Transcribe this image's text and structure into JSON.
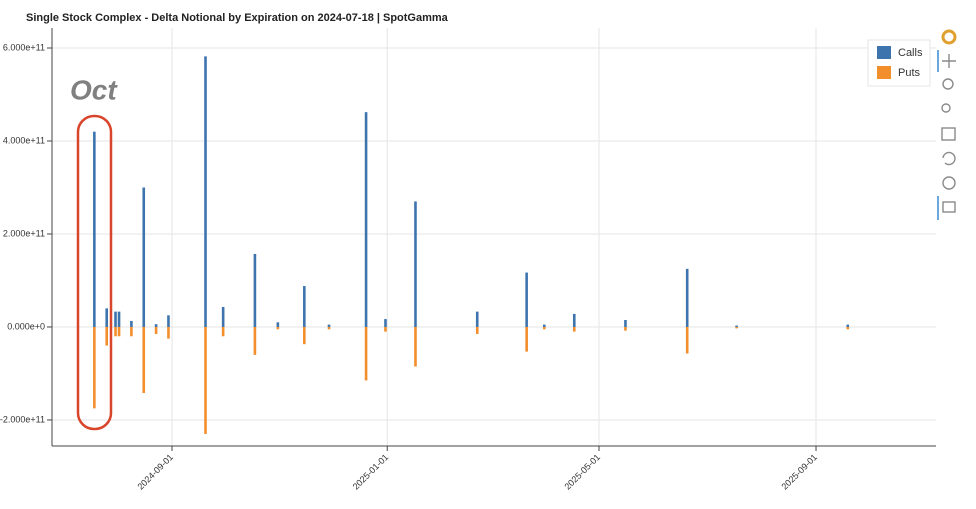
{
  "chart_data": {
    "type": "bar",
    "title": "Single Stock Complex - Delta Notional by Expiration on 2024-07-18 | SpotGamma",
    "annotation": "Oct",
    "x": [
      "2024-07-19",
      "2024-07-26",
      "2024-07-31",
      "2024-08-02",
      "2024-08-09",
      "2024-08-16",
      "2024-08-23",
      "2024-08-30",
      "2024-09-20",
      "2024-09-30",
      "2024-10-18",
      "2024-10-31",
      "2024-11-15",
      "2024-11-29",
      "2024-12-20",
      "2024-12-31",
      "2025-01-17",
      "2025-02-21",
      "2025-03-21",
      "2025-03-31",
      "2025-04-17",
      "2025-05-16",
      "2025-06-20",
      "2025-07-18",
      "2025-09-19"
    ],
    "series": [
      {
        "name": "Calls",
        "color": "#3e74ae",
        "values": [
          420000000000,
          40000000000,
          33000000000,
          33000000000,
          13000000000,
          300000000000,
          6000000000,
          25000000000,
          582000000000,
          43000000000,
          157000000000,
          10000000000,
          88000000000,
          5000000000,
          462000000000,
          17000000000,
          270000000000,
          33000000000,
          117000000000,
          5000000000,
          28000000000,
          15000000000,
          125000000000,
          3000000000,
          5000000000
        ]
      },
      {
        "name": "Puts",
        "color": "#f28e2b",
        "values": [
          -175000000000,
          -40000000000,
          -20000000000,
          -20000000000,
          -20000000000,
          -142000000000,
          -15000000000,
          -25000000000,
          -230000000000,
          -20000000000,
          -60000000000,
          -5000000000,
          -37000000000,
          -5000000000,
          -115000000000,
          -10000000000,
          -85000000000,
          -15000000000,
          -53000000000,
          -5000000000,
          -10000000000,
          -8000000000,
          -57000000000,
          -3000000000,
          -5000000000
        ]
      }
    ],
    "xlim": [
      "2024-06-25",
      "2025-11-08"
    ],
    "xticks": [
      "2024-09-01",
      "2025-01-01",
      "2025-05-01",
      "2025-09-01"
    ],
    "ylim": [
      -256000000000,
      643000000000
    ],
    "yticks": [
      {
        "value": -200000000000,
        "label": "-2.000e+11"
      },
      {
        "value": 0,
        "label": "0.000e+0"
      },
      {
        "value": 200000000000,
        "label": "2.000e+11"
      },
      {
        "value": 400000000000,
        "label": "4.000e+11"
      },
      {
        "value": 600000000000,
        "label": "6.000e+11"
      }
    ],
    "grid": true,
    "legend": "top-right"
  }
}
